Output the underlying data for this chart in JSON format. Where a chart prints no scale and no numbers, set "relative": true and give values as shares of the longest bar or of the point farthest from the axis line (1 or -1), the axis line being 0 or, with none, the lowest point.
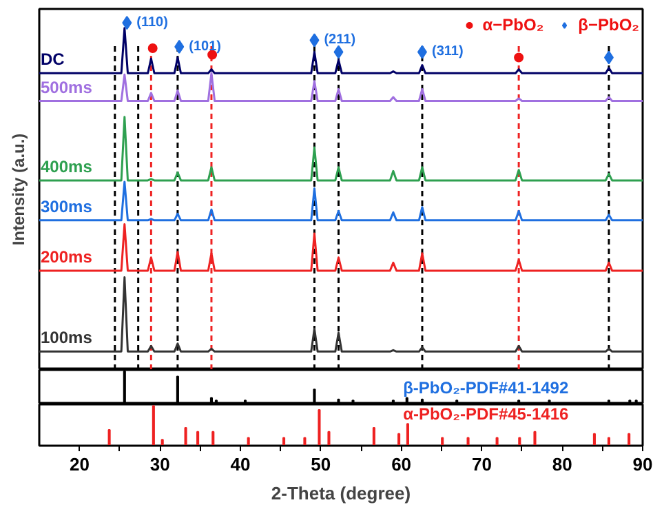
{
  "chart_data": [
    {
      "type": "line",
      "relative": true,
      "ylabel": "Intensity (a.u.)",
      "xlim": [
        15,
        90
      ],
      "tick_labels": false,
      "legend": "top right",
      "marker": "none",
      "line_style": "solid",
      "series": [
        {
          "name": "DC",
          "color": "#000066",
          "x": [
            15,
            25.2,
            25.6,
            26,
            28.5,
            28.9,
            29.3,
            31.8,
            32.2,
            32.6,
            36,
            36.4,
            36.8,
            48.8,
            49.2,
            49.6,
            51.8,
            52.2,
            52.6,
            58.6,
            59,
            59.4,
            62.2,
            62.6,
            63,
            74.2,
            74.6,
            75,
            85.4,
            85.8,
            86.2,
            90
          ],
          "values": [
            0.855,
            0.855,
            0.985,
            0.855,
            0.855,
            0.897,
            0.855,
            0.855,
            0.9,
            0.855,
            0.855,
            0.866,
            0.855,
            0.855,
            0.916,
            0.855,
            0.855,
            0.893,
            0.855,
            0.855,
            0.86,
            0.855,
            0.855,
            0.878,
            0.855,
            0.855,
            0.866,
            0.855,
            0.855,
            0.87,
            0.855,
            0.855
          ]
        },
        {
          "name": "500ms",
          "color": "#a070e0",
          "x": [
            15,
            25.2,
            25.6,
            26,
            28.5,
            28.9,
            29.3,
            31.8,
            32.2,
            32.6,
            36,
            36.4,
            36.8,
            48.8,
            49.2,
            49.6,
            51.8,
            52.2,
            52.6,
            58.6,
            59,
            59.4,
            62.2,
            62.6,
            63,
            74.2,
            74.6,
            75,
            85.4,
            85.8,
            86.2,
            90
          ],
          "values": [
            0.775,
            0.775,
            0.851,
            0.775,
            0.775,
            0.798,
            0.775,
            0.775,
            0.805,
            0.775,
            0.775,
            0.855,
            0.775,
            0.775,
            0.832,
            0.775,
            0.775,
            0.809,
            0.775,
            0.775,
            0.786,
            0.775,
            0.775,
            0.809,
            0.775,
            0.775,
            0.782,
            0.775,
            0.775,
            0.786,
            0.775,
            0.775
          ]
        },
        {
          "name": "400ms",
          "color": "#2ea050",
          "x": [
            15,
            25.2,
            25.6,
            26,
            28.5,
            28.9,
            29.3,
            31.8,
            32.2,
            32.6,
            36,
            36.4,
            36.8,
            48.8,
            49.2,
            49.6,
            51.8,
            52.2,
            52.6,
            58.6,
            59,
            59.4,
            62.2,
            62.6,
            63,
            74.2,
            74.6,
            75,
            85.4,
            85.8,
            86.2,
            90
          ],
          "values": [
            0.546,
            0.546,
            0.729,
            0.546,
            0.546,
            0.55,
            0.546,
            0.546,
            0.569,
            0.546,
            0.546,
            0.584,
            0.546,
            0.546,
            0.641,
            0.546,
            0.546,
            0.584,
            0.546,
            0.546,
            0.573,
            0.546,
            0.546,
            0.584,
            0.546,
            0.546,
            0.576,
            0.546,
            0.546,
            0.565,
            0.546,
            0.546
          ]
        },
        {
          "name": "300ms",
          "color": "#1f6fe0",
          "x": [
            15,
            25.2,
            25.6,
            26,
            28.5,
            28.9,
            29.3,
            31.8,
            32.2,
            32.6,
            36,
            36.4,
            36.8,
            48.8,
            49.2,
            49.6,
            51.8,
            52.2,
            52.6,
            58.6,
            59,
            59.4,
            62.2,
            62.6,
            63,
            74.2,
            74.6,
            75,
            85.4,
            85.8,
            86.2,
            90
          ],
          "values": [
            0.431,
            0.431,
            0.542,
            0.431,
            0.431,
            0.435,
            0.431,
            0.431,
            0.45,
            0.431,
            0.431,
            0.462,
            0.431,
            0.431,
            0.523,
            0.431,
            0.431,
            0.458,
            0.431,
            0.431,
            0.454,
            0.431,
            0.431,
            0.469,
            0.431,
            0.431,
            0.458,
            0.431,
            0.431,
            0.447,
            0.431,
            0.431
          ]
        },
        {
          "name": "200ms",
          "color": "#ee2222",
          "x": [
            15,
            25.2,
            25.6,
            26,
            28.5,
            28.9,
            29.3,
            31.8,
            32.2,
            32.6,
            36,
            36.4,
            36.8,
            48.8,
            49.2,
            49.6,
            51.8,
            52.2,
            52.6,
            58.6,
            59,
            59.4,
            62.2,
            62.6,
            63,
            74.2,
            74.6,
            75,
            85.4,
            85.8,
            86.2,
            90
          ],
          "values": [
            0.286,
            0.286,
            0.42,
            0.286,
            0.286,
            0.324,
            0.286,
            0.286,
            0.34,
            0.286,
            0.286,
            0.336,
            0.286,
            0.286,
            0.393,
            0.286,
            0.286,
            0.324,
            0.286,
            0.286,
            0.309,
            0.286,
            0.286,
            0.336,
            0.286,
            0.286,
            0.317,
            0.286,
            0.286,
            0.309,
            0.286,
            0.286
          ]
        },
        {
          "name": "100ms",
          "color": "#333333",
          "x": [
            15,
            25.2,
            25.6,
            26,
            28.5,
            28.9,
            29.3,
            31.8,
            32.2,
            32.6,
            36,
            36.4,
            36.8,
            48.8,
            49.2,
            49.6,
            51.8,
            52.2,
            52.6,
            58.6,
            59,
            59.4,
            62.2,
            62.6,
            63,
            74.2,
            74.6,
            75,
            85.4,
            85.8,
            86.2,
            90
          ],
          "values": [
            0.053,
            0.053,
            0.267,
            0.053,
            0.053,
            0.069,
            0.053,
            0.053,
            0.076,
            0.053,
            0.053,
            0.061,
            0.053,
            0.053,
            0.118,
            0.053,
            0.053,
            0.107,
            0.053,
            0.053,
            0.057,
            0.053,
            0.053,
            0.065,
            0.053,
            0.053,
            0.069,
            0.053,
            0.053,
            0.061,
            0.053,
            0.053
          ]
        },
        {
          "name": "α−PbO₂",
          "type": "scatter",
          "marker": "circle",
          "color": "#ee1111",
          "x": [
            29.1,
            36.5,
            74.6
          ],
          "values": [
            0.927,
            0.908,
            0.9
          ]
        },
        {
          "name": "β−PbO₂",
          "type": "scatter",
          "marker": "diamond",
          "color": "#1f6fe0",
          "x": [
            25.9,
            32.4,
            49.2,
            52.2,
            62.6,
            85.8
          ],
          "values": [
            1.0,
            0.931,
            0.95,
            0.916,
            0.916,
            0.9
          ]
        }
      ],
      "annotations": [
        {
          "text": "(110)",
          "x": 25.9,
          "y": 1.0
        },
        {
          "text": "(101)",
          "x": 32.4,
          "y": 0.931
        },
        {
          "text": "(211)",
          "x": 49.2,
          "y": 0.95
        },
        {
          "text": "(311)",
          "x": 62.6,
          "y": 0.916
        }
      ],
      "ref_lines": [
        {
          "axis": "x",
          "value": 24.4,
          "color": "#000000",
          "line_style": "dashed"
        },
        {
          "axis": "x",
          "value": 27.3,
          "color": "#000000",
          "line_style": "dashed"
        },
        {
          "axis": "x",
          "value": 32.2,
          "color": "#000000",
          "line_style": "dashed"
        },
        {
          "axis": "x",
          "value": 49.2,
          "color": "#000000",
          "line_style": "dashed"
        },
        {
          "axis": "x",
          "value": 52.2,
          "color": "#000000",
          "line_style": "dashed"
        },
        {
          "axis": "x",
          "value": 62.6,
          "color": "#000000",
          "line_style": "dashed"
        },
        {
          "axis": "x",
          "value": 85.8,
          "color": "#000000",
          "line_style": "dashed"
        },
        {
          "axis": "x",
          "value": 28.9,
          "color": "#ee2222",
          "line_style": "dashed"
        },
        {
          "axis": "x",
          "value": 36.4,
          "color": "#ee2222",
          "line_style": "dashed"
        },
        {
          "axis": "x",
          "value": 74.6,
          "color": "#ee2222",
          "line_style": "dashed"
        }
      ]
    },
    {
      "type": "bar",
      "relative": true,
      "xlim": [
        15,
        90
      ],
      "tick_labels": false,
      "series": [
        {
          "color": "#000000",
          "x": [
            25.6,
            32.2,
            36.4,
            37.0,
            40.6,
            49.2,
            52.2,
            54.0,
            59.0,
            60.7,
            62.6,
            66.9,
            74.6,
            78.4,
            85.8,
            88.4,
            89.2
          ],
          "values": [
            1,
            0.84,
            0.2,
            0.12,
            0.12,
            0.45,
            0.15,
            0.12,
            0.12,
            0.2,
            0.15,
            0.12,
            0.12,
            0.12,
            0.12,
            0.12,
            0.12
          ]
        }
      ],
      "annotations": [
        "β-PbO₂-PDF#41-1492"
      ]
    },
    {
      "type": "bar",
      "relative": true,
      "xlim": [
        15,
        90
      ],
      "tick_labels": "x",
      "xlabel": "2-Theta (degree)",
      "xticks": [
        20,
        {
          "value": 25,
          "label": null
        },
        30,
        {
          "value": 35,
          "label": null
        },
        40,
        {
          "value": 45,
          "label": null
        },
        50,
        {
          "value": 55,
          "label": null
        },
        60,
        {
          "value": 65,
          "label": null
        },
        70,
        {
          "value": 75,
          "label": null
        },
        80,
        {
          "value": 85,
          "label": null
        },
        90
      ],
      "series": [
        {
          "color": "#ee2222",
          "x": [
            23.7,
            29.2,
            30.3,
            33.2,
            34.7,
            36.6,
            41.0,
            45.4,
            48.0,
            49.8,
            51.0,
            56.6,
            59.7,
            60.8,
            65.1,
            68.3,
            71.9,
            74.7,
            76.6,
            84.0,
            85.8,
            88.3
          ],
          "values": [
            0.4,
            1,
            0.15,
            0.45,
            0.35,
            0.35,
            0.2,
            0.2,
            0.2,
            0.9,
            0.35,
            0.45,
            0.3,
            0.55,
            0.2,
            0.2,
            0.2,
            0.2,
            0.35,
            0.3,
            0.2,
            0.3
          ]
        }
      ],
      "annotations": [
        "α-PbO₂-PDF#45-1416"
      ]
    }
  ]
}
